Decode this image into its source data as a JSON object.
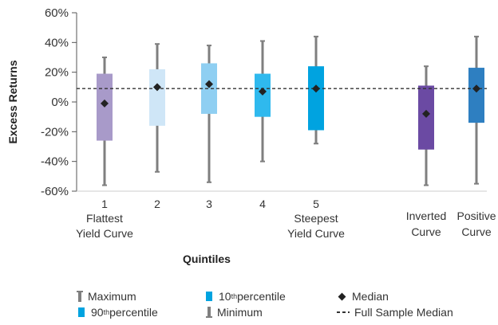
{
  "chart_data": {
    "type": "box",
    "ylabel": "Excess Returns",
    "xlabel": "Quintiles",
    "ylim": [
      -0.6,
      0.6
    ],
    "yticks": [
      "60%",
      "40%",
      "20%",
      "0%",
      "-20%",
      "-40%",
      "-60%"
    ],
    "full_sample_median": 0.09,
    "boxes": [
      {
        "label1": "1",
        "label2": "Flattest",
        "label3": "Yield Curve",
        "max": 0.3,
        "p90": 0.19,
        "median": -0.01,
        "p10": -0.26,
        "min": -0.56,
        "color": "#a89ac9"
      },
      {
        "label1": "2",
        "label2": "",
        "label3": "",
        "max": 0.39,
        "p90": 0.22,
        "median": 0.1,
        "p10": -0.16,
        "min": -0.47,
        "color": "#cfe6f7"
      },
      {
        "label1": "3",
        "label2": "",
        "label3": "",
        "max": 0.38,
        "p90": 0.26,
        "median": 0.12,
        "p10": -0.08,
        "min": -0.54,
        "color": "#8fcff2"
      },
      {
        "label1": "4",
        "label2": "",
        "label3": "",
        "max": 0.41,
        "p90": 0.19,
        "median": 0.07,
        "p10": -0.1,
        "min": -0.4,
        "color": "#2fb9ee"
      },
      {
        "label1": "5",
        "label2": "Steepest",
        "label3": "Yield Curve",
        "max": 0.44,
        "p90": 0.24,
        "median": 0.09,
        "p10": -0.19,
        "min": -0.28,
        "color": "#00a3e0"
      },
      {
        "label1": "",
        "label2": "Inverted",
        "label3": "Curve",
        "max": 0.24,
        "p90": 0.11,
        "median": -0.08,
        "p10": -0.32,
        "min": -0.56,
        "color": "#6b4aa3"
      },
      {
        "label1": "",
        "label2": "Positive",
        "label3": "Curve",
        "max": 0.44,
        "p90": 0.23,
        "median": 0.09,
        "p10": -0.14,
        "min": -0.55,
        "color": "#2e7fc1"
      }
    ]
  },
  "legend": {
    "maximum": "Maximum",
    "p10_base": "10",
    "p10_sup": "th",
    "p10_rest": " percentile",
    "median": "Median",
    "p90_base": "90",
    "p90_sup": "th",
    "p90_rest": " percentile",
    "minimum": "Minimum",
    "full_sample_median": "Full Sample Median",
    "colors": {
      "whisker": "#7f7f7f",
      "p10": "#00a3e0",
      "median": "#222222"
    }
  }
}
